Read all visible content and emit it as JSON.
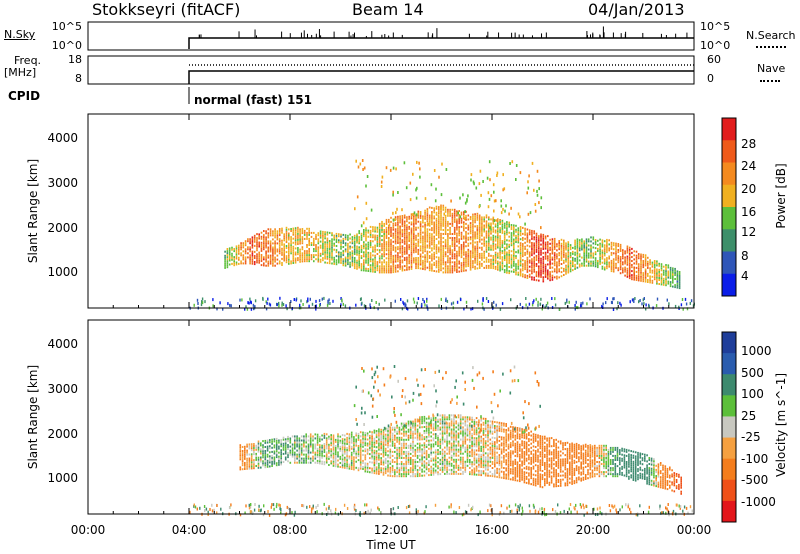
{
  "header": {
    "station": "Stokkseyri (fitACF)",
    "beam": "Beam 14",
    "date": "04/Jan/2013"
  },
  "noise_panel": {
    "left_label": "N.Sky",
    "left_ticks": [
      "10^5",
      "10^0"
    ],
    "right_ticks": [
      "10^5",
      "10^0"
    ],
    "right_label": "N.Search"
  },
  "freq_panel": {
    "left_label_1": "Freq.",
    "left_label_2": "[MHz]",
    "left_ticks": [
      "18",
      "8"
    ],
    "right_ticks": [
      "60",
      "0"
    ],
    "right_label": "Nave"
  },
  "cpid_panel": {
    "label": "CPID",
    "mode_text": "normal (fast) 151"
  },
  "colors": {
    "power": [
      "#0b1ee8",
      "#2f56b8",
      "#3d8f6a",
      "#5cbf3a",
      "#f0b020",
      "#f48a1f",
      "#ef5a1a",
      "#e21d1d"
    ],
    "velocity": [
      "#e3161b",
      "#ef5018",
      "#f47d1c",
      "#f5a040",
      "#c8c8c0",
      "#5cbf3a",
      "#3d8a6e",
      "#2a5cae",
      "#1f3e9a"
    ]
  },
  "chart_data": [
    {
      "type": "heatmap",
      "panel": "power",
      "xlabel": "Time UT",
      "ylabel": "Slant Range [km]",
      "x_tick_labels": [
        "00:00",
        "04:00",
        "08:00",
        "12:00",
        "16:00",
        "20:00",
        "00:00"
      ],
      "y_tick_labels": [
        "1000",
        "2000",
        "3000",
        "4000"
      ],
      "xlim": [
        0,
        24
      ],
      "ylim": [
        180,
        4500
      ],
      "colorbar": {
        "label": "Power [dB]",
        "tick_labels": [
          "4",
          "8",
          "12",
          "16",
          "20",
          "24",
          "28"
        ],
        "range": [
          0,
          32
        ]
      },
      "series": [
        {
          "x": [
            5.4,
            6.0,
            6.4,
            7.0,
            7.5,
            8.0,
            8.5,
            9.0,
            9.6,
            10.2,
            10.8,
            11.5,
            12.0,
            12.5,
            13.0,
            13.5,
            14.0,
            14.5,
            15.0,
            15.5,
            16.0,
            16.5,
            17.0,
            17.5,
            18.0,
            18.5,
            19.0,
            19.5,
            20.0,
            20.5,
            21.0,
            21.5,
            22.0,
            22.5,
            23.0,
            23.4
          ],
          "range_low": [
            1050,
            1150,
            1150,
            1100,
            1100,
            1150,
            1200,
            1200,
            1150,
            1100,
            1000,
            950,
            950,
            1000,
            1050,
            1000,
            950,
            950,
            1000,
            1050,
            1050,
            950,
            900,
            800,
            750,
            800,
            950,
            1100,
            1100,
            1000,
            950,
            800,
            750,
            700,
            650,
            600
          ],
          "range_high": [
            1450,
            1600,
            1750,
            1900,
            1950,
            1950,
            1950,
            1900,
            1850,
            1800,
            1900,
            2050,
            2200,
            2250,
            2300,
            2400,
            2450,
            2350,
            2300,
            2250,
            2200,
            2100,
            2000,
            1900,
            1800,
            1700,
            1650,
            1700,
            1750,
            1700,
            1600,
            1500,
            1350,
            1200,
            1100,
            1000
          ],
          "power": [
            12,
            20,
            26,
            24,
            22,
            18,
            20,
            18,
            16,
            14,
            16,
            18,
            22,
            24,
            22,
            20,
            20,
            24,
            22,
            20,
            18,
            16,
            16,
            26,
            28,
            24,
            18,
            14,
            14,
            18,
            24,
            26,
            22,
            18,
            14,
            10
          ]
        }
      ]
    },
    {
      "type": "heatmap",
      "panel": "velocity",
      "xlabel": "Time UT",
      "ylabel": "Slant Range [km]",
      "x_tick_labels": [
        "00:00",
        "04:00",
        "08:00",
        "12:00",
        "16:00",
        "20:00",
        "00:00"
      ],
      "y_tick_labels": [
        "1000",
        "2000",
        "3000",
        "4000"
      ],
      "xlim": [
        0,
        24
      ],
      "ylim": [
        180,
        4500
      ],
      "colorbar": {
        "label": "Velocity [m s^-1]",
        "tick_labels": [
          "1000",
          "500",
          "100",
          "25",
          "-25",
          "-100",
          "-500",
          "-1000"
        ]
      },
      "series": [
        {
          "x": [
            6.0,
            7.0,
            8.0,
            9.0,
            10.0,
            11.0,
            12.0,
            13.0,
            14.0,
            15.0,
            16.0,
            17.0,
            18.0,
            19.0,
            20.0,
            21.0,
            22.0,
            23.0,
            23.5
          ],
          "range_low": [
            1150,
            1200,
            1300,
            1300,
            1200,
            1100,
            1000,
            1000,
            1050,
            1050,
            1000,
            900,
            750,
            800,
            1000,
            1000,
            850,
            700,
            600
          ],
          "range_high": [
            1700,
            1800,
            1900,
            1950,
            1950,
            2000,
            2100,
            2300,
            2400,
            2350,
            2250,
            2100,
            1900,
            1750,
            1700,
            1650,
            1500,
            1200,
            1000
          ],
          "velocity": [
            -150,
            100,
            80,
            20,
            10,
            0,
            -10,
            0,
            10,
            -20,
            -50,
            -200,
            -400,
            -300,
            -120,
            200,
            300,
            -400,
            -700
          ]
        }
      ]
    }
  ]
}
